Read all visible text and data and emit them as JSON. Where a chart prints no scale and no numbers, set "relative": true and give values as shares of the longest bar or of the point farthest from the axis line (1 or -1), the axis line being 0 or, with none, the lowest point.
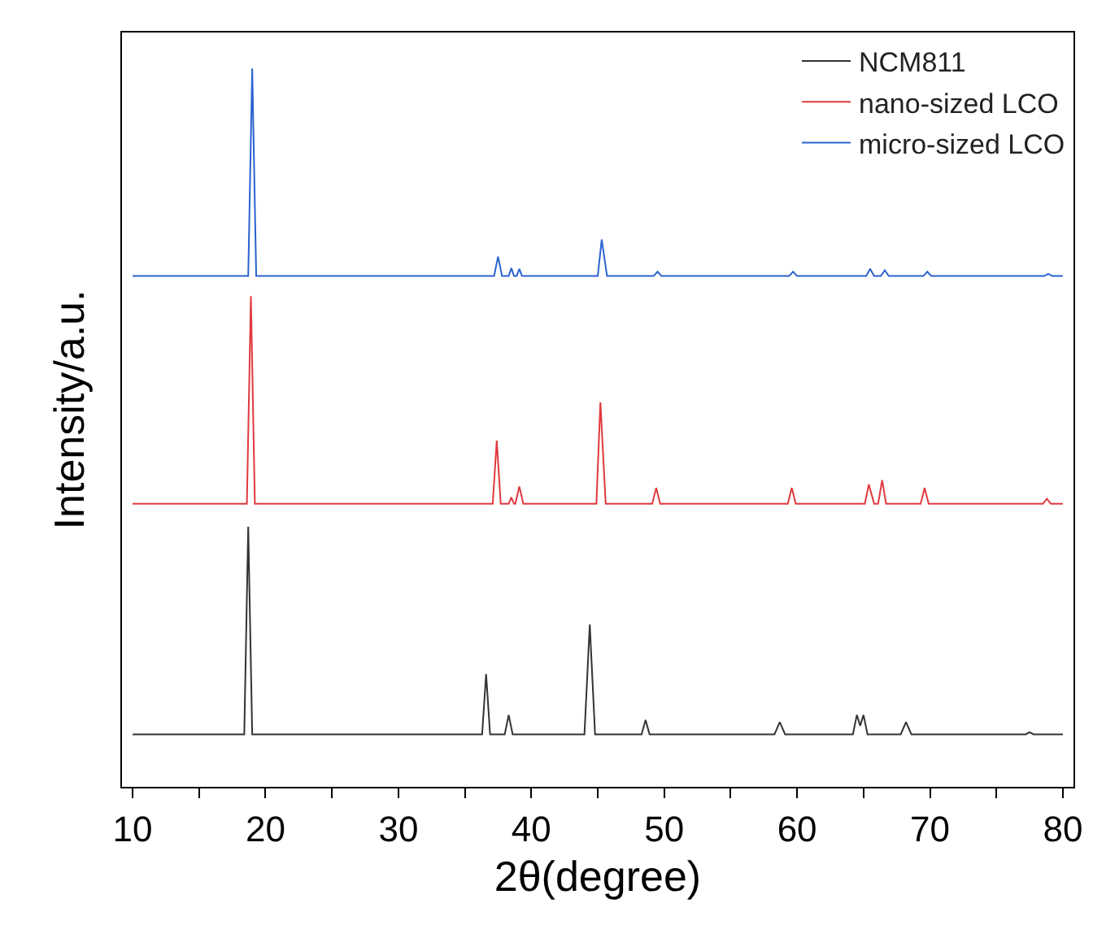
{
  "chart_data": {
    "type": "line",
    "relative": true,
    "xlabel": "2θ(degree)",
    "ylabel": "Intensity/a.u.",
    "xlim": [
      9.2,
      80.8
    ],
    "xticks": [
      10,
      {
        "value": 15,
        "label": null
      },
      20,
      {
        "value": 25,
        "label": null
      },
      30,
      {
        "value": 35,
        "label": null
      },
      40,
      {
        "value": 45,
        "label": null
      },
      50,
      {
        "value": 55,
        "label": null
      },
      60,
      {
        "value": 65,
        "label": null
      },
      70,
      {
        "value": 75,
        "label": null
      },
      80
    ],
    "tick_labels": "x",
    "grid": false,
    "legend": "top right",
    "marker": "none",
    "line_style": "solid",
    "series": [
      {
        "name": "NCM811",
        "color": "#333333",
        "x": [
          10,
          18.4,
          18.7,
          19.0,
          36.3,
          36.6,
          36.9,
          38.0,
          38.3,
          38.6,
          44.0,
          44.4,
          44.8,
          48.3,
          48.6,
          48.9,
          58.3,
          58.7,
          59.1,
          64.2,
          64.5,
          64.75,
          65.0,
          65.3,
          67.8,
          68.2,
          68.6,
          77.2,
          77.5,
          77.8,
          80
        ],
        "values": [
          0.073,
          0.073,
          0.362,
          0.073,
          0.073,
          0.157,
          0.073,
          0.073,
          0.1,
          0.073,
          0.073,
          0.226,
          0.073,
          0.073,
          0.093,
          0.073,
          0.073,
          0.09,
          0.073,
          0.073,
          0.1,
          0.085,
          0.1,
          0.073,
          0.073,
          0.09,
          0.073,
          0.073,
          0.076,
          0.073,
          0.073
        ]
      },
      {
        "name": "nano-sized LCO",
        "color": "#e0393e",
        "x": [
          10,
          18.6,
          18.9,
          19.2,
          37.1,
          37.4,
          37.7,
          38.3,
          38.5,
          38.7,
          38.8,
          39.1,
          39.4,
          44.9,
          45.2,
          45.6,
          49.1,
          49.4,
          49.7,
          59.3,
          59.6,
          59.9,
          65.1,
          65.4,
          65.8,
          66.1,
          66.4,
          66.7,
          69.3,
          69.6,
          69.9,
          78.5,
          78.8,
          79.1,
          80
        ],
        "values": [
          0.394,
          0.394,
          0.683,
          0.394,
          0.394,
          0.482,
          0.394,
          0.394,
          0.403,
          0.394,
          0.394,
          0.418,
          0.394,
          0.394,
          0.535,
          0.394,
          0.394,
          0.416,
          0.394,
          0.394,
          0.416,
          0.394,
          0.394,
          0.421,
          0.394,
          0.394,
          0.427,
          0.394,
          0.394,
          0.416,
          0.394,
          0.394,
          0.401,
          0.394,
          0.394
        ]
      },
      {
        "name": "micro-sized LCO",
        "color": "#2a62d0",
        "x": [
          10,
          18.7,
          19.0,
          19.3,
          37.2,
          37.5,
          37.8,
          38.3,
          38.5,
          38.7,
          38.9,
          39.1,
          39.3,
          45.0,
          45.3,
          45.7,
          49.2,
          49.5,
          49.8,
          59.4,
          59.7,
          60.0,
          65.2,
          65.5,
          65.8,
          66.3,
          66.6,
          66.9,
          69.5,
          69.8,
          70.1,
          78.6,
          78.9,
          79.2,
          80
        ],
        "values": [
          0.711,
          0.711,
          1.0,
          0.711,
          0.711,
          0.738,
          0.711,
          0.711,
          0.722,
          0.711,
          0.711,
          0.721,
          0.711,
          0.711,
          0.762,
          0.711,
          0.711,
          0.717,
          0.711,
          0.711,
          0.717,
          0.711,
          0.711,
          0.721,
          0.711,
          0.711,
          0.719,
          0.711,
          0.711,
          0.717,
          0.711,
          0.711,
          0.714,
          0.711,
          0.711
        ]
      }
    ]
  }
}
